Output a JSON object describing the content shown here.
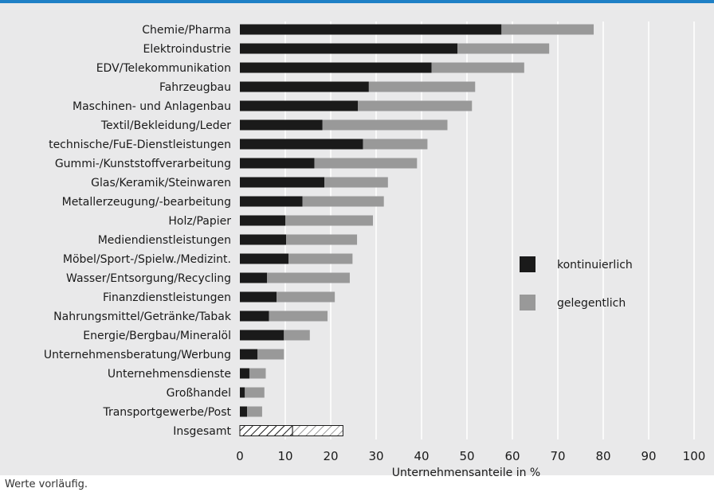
{
  "chart_data": {
    "type": "bar",
    "orientation": "horizontal",
    "stacked": true,
    "categories": [
      "Chemie/Pharma",
      "Elektroindustrie",
      "EDV/Telekommunikation",
      "Fahrzeugbau",
      "Maschinen- und Anlagenbau",
      "Textil/Bekleidung/Leder",
      "technische/FuE-Dienstleistungen",
      "Gummi-/Kunststoffverarbeitung",
      "Glas/Keramik/Steinwaren",
      "Metallerzeugung/-bearbeitung",
      "Holz/Papier",
      "Mediendienstleistungen",
      "Möbel/Sport-/Spielw./Medizint.",
      "Wasser/Entsorgung/Recycling",
      "Finanzdienstleistungen",
      "Nahrungsmittel/Getränke/Tabak",
      "Energie/Bergbau/Mineralöl",
      "Unternehmensberatung/Werbung",
      "Unternehmensdienste",
      "Großhandel",
      "Transportgewerbe/Post",
      "Insgesamt"
    ],
    "series": [
      {
        "name": "kontinuierlich",
        "color": "#1a1a1a",
        "values": [
          57.6,
          47.9,
          42.2,
          28.4,
          26.0,
          18.2,
          27.1,
          16.4,
          18.6,
          13.8,
          10.0,
          10.2,
          10.7,
          6.0,
          8.1,
          6.4,
          9.7,
          3.9,
          2.1,
          1.1,
          1.6,
          11.6
        ]
      },
      {
        "name": "gelegentlich",
        "color": "#999999",
        "values": [
          20.3,
          20.2,
          20.4,
          23.4,
          25.1,
          27.5,
          14.2,
          22.6,
          14.0,
          17.9,
          19.3,
          15.6,
          14.1,
          18.2,
          12.8,
          12.9,
          5.7,
          5.8,
          3.6,
          4.3,
          3.3,
          11.1
        ]
      }
    ],
    "total_pattern": "hatched",
    "xlabel": "Unternehmensanteile in %",
    "xlim": [
      0,
      100
    ],
    "xticks": [
      0,
      10,
      20,
      30,
      40,
      50,
      60,
      70,
      80,
      90,
      100
    ],
    "grid": "vertical",
    "legend_position": "right-middle",
    "footnote": "Werte vorläufig."
  }
}
